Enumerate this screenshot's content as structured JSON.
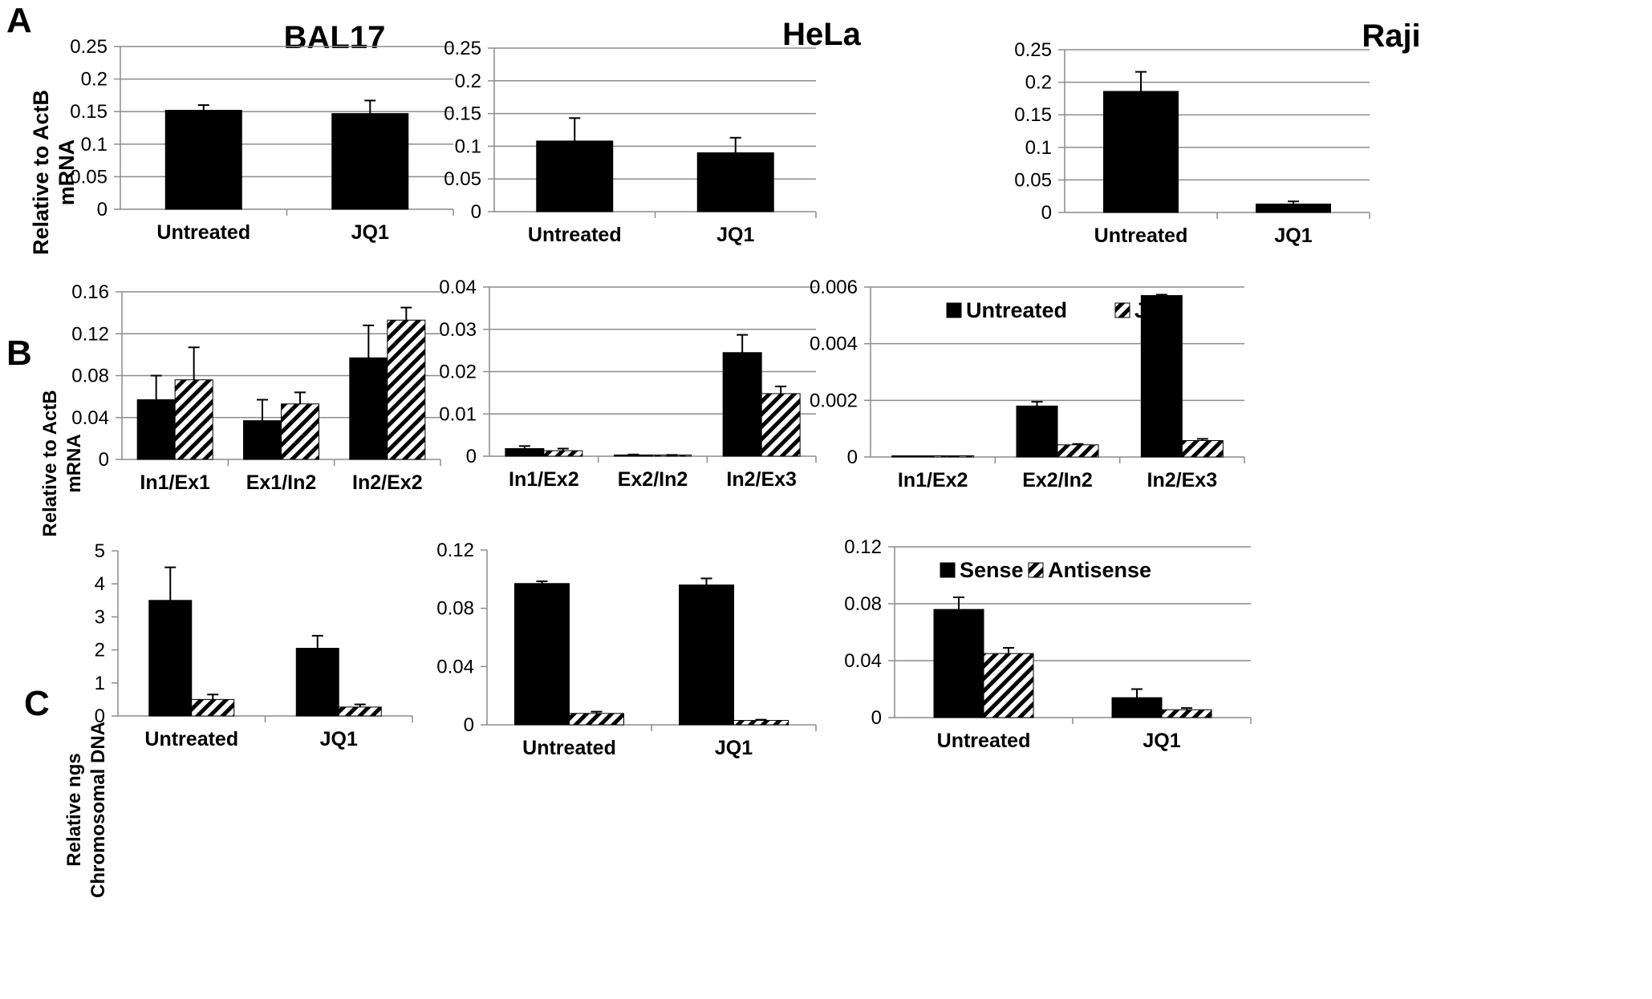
{
  "colors": {
    "series1": "#000000",
    "series2_stripe": "#000000",
    "series2_bg": "#ffffff",
    "grid": "#8c8c8c",
    "axis": "#8c8c8c"
  },
  "panel_letters": [
    "A",
    "B",
    "C"
  ],
  "column_titles": [
    "BAL17",
    "HeLa",
    "Raji"
  ],
  "ylabels": {
    "A": [
      "Relative to ActB",
      "mRNA"
    ],
    "B": [
      "Relative to ActB",
      "mRNA"
    ],
    "C": [
      "Relative ngs",
      "Chromosomal DNA"
    ]
  },
  "chart_data": [
    {
      "id": "A-BAL17",
      "type": "bar",
      "categories": [
        "Untreated",
        "JQ1"
      ],
      "ylim": [
        0,
        0.25
      ],
      "ticks": [
        "0",
        "0.05",
        "0.1",
        "0.15",
        "0.2",
        "0.25"
      ],
      "grid": true,
      "series": [
        {
          "style": "solid",
          "values": [
            0.152,
            0.147
          ],
          "errors": [
            0.008,
            0.02
          ]
        }
      ]
    },
    {
      "id": "A-HeLa",
      "type": "bar",
      "categories": [
        "Untreated",
        "JQ1"
      ],
      "ylim": [
        0,
        0.25
      ],
      "ticks": [
        "0",
        "0.05",
        "0.1",
        "0.15",
        "0.2",
        "0.25"
      ],
      "grid": true,
      "series": [
        {
          "style": "solid",
          "values": [
            0.108,
            0.09
          ],
          "errors": [
            0.035,
            0.023
          ]
        }
      ]
    },
    {
      "id": "A-Raji",
      "type": "bar",
      "categories": [
        "Untreated",
        "JQ1"
      ],
      "ylim": [
        0,
        0.25
      ],
      "ticks": [
        "0",
        "0.05",
        "0.1",
        "0.15",
        "0.2",
        "0.25"
      ],
      "grid": true,
      "series": [
        {
          "style": "solid",
          "values": [
            0.186,
            0.013
          ],
          "errors": [
            0.03,
            0.004
          ]
        }
      ]
    },
    {
      "id": "B-BAL17",
      "type": "bar",
      "categories": [
        "In1/Ex1",
        "Ex1/In2",
        "In2/Ex2"
      ],
      "ylim": [
        0,
        0.16
      ],
      "ticks": [
        "0",
        "0.04",
        "0.08",
        "0.12",
        "0.16"
      ],
      "grid": true,
      "series": [
        {
          "style": "solid",
          "values": [
            0.057,
            0.037,
            0.097
          ],
          "errors": [
            0.023,
            0.02,
            0.031
          ]
        },
        {
          "style": "hatch",
          "values": [
            0.076,
            0.053,
            0.133
          ],
          "errors": [
            0.031,
            0.011,
            0.012
          ]
        }
      ]
    },
    {
      "id": "B-HeLa",
      "type": "bar",
      "categories": [
        "In1/Ex2",
        "Ex2/In2",
        "In2/Ex3"
      ],
      "ylim": [
        0,
        0.04
      ],
      "ticks": [
        "0",
        "0.01",
        "0.02",
        "0.03",
        "0.04"
      ],
      "grid": true,
      "series": [
        {
          "style": "solid",
          "values": [
            0.0018,
            0.0003,
            0.0245
          ],
          "errors": [
            0.0006,
            0.0001,
            0.0042
          ]
        },
        {
          "style": "hatch",
          "values": [
            0.0013,
            0.0002,
            0.0148
          ],
          "errors": [
            0.0005,
            0.0001,
            0.0017
          ]
        }
      ]
    },
    {
      "id": "B-Raji",
      "type": "bar",
      "categories": [
        "In1/Ex2",
        "Ex2/In2",
        "In2/Ex3"
      ],
      "ylim": [
        0,
        0.006
      ],
      "ticks": [
        "0",
        "0.002",
        "0.004",
        "0.006"
      ],
      "grid": true,
      "legend": {
        "placement": "top",
        "entries": [
          {
            "name": "Untreated",
            "style": "solid"
          },
          {
            "name": "JQ1",
            "style": "hatch"
          }
        ]
      },
      "series": [
        {
          "name": "Untreated",
          "style": "solid",
          "values": [
            2e-05,
            0.0018,
            0.0057
          ],
          "errors": [
            5e-06,
            0.00015,
            3e-05
          ]
        },
        {
          "name": "JQ1",
          "style": "hatch",
          "values": [
            2e-05,
            0.00043,
            0.00058
          ],
          "errors": [
            5e-06,
            3e-05,
            6e-05
          ]
        }
      ]
    },
    {
      "id": "C-BAL17",
      "type": "bar",
      "categories": [
        "Untreated",
        "JQ1"
      ],
      "ylim": [
        0,
        5
      ],
      "ticks": [
        "0",
        "1",
        "2",
        "3",
        "4",
        "5"
      ],
      "grid": false,
      "series": [
        {
          "style": "solid",
          "values": [
            3.5,
            2.05
          ],
          "errors": [
            1.0,
            0.38
          ]
        },
        {
          "style": "hatch",
          "values": [
            0.5,
            0.27
          ],
          "errors": [
            0.15,
            0.08
          ]
        }
      ]
    },
    {
      "id": "C-HeLa",
      "type": "bar",
      "categories": [
        "Untreated",
        "JQ1"
      ],
      "ylim": [
        0,
        0.12
      ],
      "ticks": [
        "0",
        "0.04",
        "0.08",
        "0.12"
      ],
      "grid": false,
      "series": [
        {
          "style": "solid",
          "values": [
            0.097,
            0.096
          ],
          "errors": [
            0.0015,
            0.0045
          ]
        },
        {
          "style": "hatch",
          "values": [
            0.0078,
            0.003
          ],
          "errors": [
            0.0012,
            0.0005
          ]
        }
      ]
    },
    {
      "id": "C-Raji",
      "type": "bar",
      "categories": [
        "Untreated",
        "JQ1"
      ],
      "ylim": [
        0,
        0.12
      ],
      "ticks": [
        "0",
        "0.04",
        "0.08",
        "0.12"
      ],
      "grid": true,
      "legend": {
        "placement": "top",
        "entries": [
          {
            "name": "Sense",
            "style": "solid"
          },
          {
            "name": "Antisense",
            "style": "hatch"
          }
        ]
      },
      "series": [
        {
          "name": "Sense",
          "style": "solid",
          "values": [
            0.076,
            0.014
          ],
          "errors": [
            0.0085,
            0.006
          ]
        },
        {
          "name": "Antisense",
          "style": "hatch",
          "values": [
            0.045,
            0.0055
          ],
          "errors": [
            0.004,
            0.0012
          ]
        }
      ]
    }
  ]
}
